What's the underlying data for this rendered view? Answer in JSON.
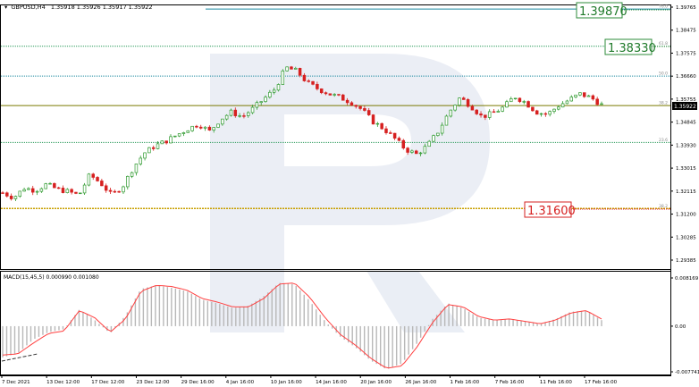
{
  "header": {
    "symbol": "GBPUSD,H4",
    "ohlc": "1.35918 1.35926 1.35917 1.35922"
  },
  "macd_panel": {
    "label": "MACD(15,45,5) 0.000990 0.001080",
    "price_labels": [
      "0.008169",
      "0.00",
      "-0.007741"
    ]
  },
  "price_scale": {
    "labels": [
      "1.39765",
      "1.38475",
      "1.37575",
      "1.36660",
      "1.35755",
      "1.34845",
      "1.33930",
      "1.33015",
      "1.32115",
      "1.31200",
      "1.30285",
      "1.29385"
    ],
    "current_price": "1.35922"
  },
  "time_scale": {
    "labels": [
      "7 Dec 2021",
      "13 Dec 12:00",
      "17 Dec 12:00",
      "23 Dec 12:00",
      "29 Dec 16:00",
      "4 Jan 16:00",
      "10 Jan 16:00",
      "14 Jan 16:00",
      "20 Jan 16:00",
      "26 Jan 16:00",
      "1 Feb 16:00",
      "7 Feb 16:00",
      "11 Feb 16:00",
      "17 Feb 16:00"
    ]
  },
  "fibonacci": {
    "levels": [
      {
        "ratio": "76.0",
        "price": 1.3987,
        "color": "#1e8aa0"
      },
      {
        "ratio": "61.8",
        "price": 1.3833,
        "color": "#2a9a5a"
      },
      {
        "ratio": "50.0",
        "price": 1.3709,
        "color": "#1e8aa0"
      },
      {
        "ratio": "38.2",
        "price": 1.3587,
        "color": "#7a7a00"
      },
      {
        "ratio": "23.6",
        "price": 1.3434,
        "color": "#2a9a5a"
      },
      {
        "ratio": "38.2",
        "price": 1.316,
        "color": "#c8a000"
      }
    ]
  },
  "annotations": [
    {
      "text": "1.39870",
      "style": "green"
    },
    {
      "text": "1.38330",
      "style": "green"
    },
    {
      "text": "1.31600",
      "style": "red"
    }
  ],
  "colors": {
    "bull": "#2f9a2f",
    "bear": "#d62020",
    "macd_signal": "#ff4040",
    "histogram": "#b8b8b8",
    "watermark": "#dde3ef"
  },
  "chart_data": [
    {
      "type": "candlestick",
      "title": "GBPUSD,H4",
      "x": [
        "7 Dec 2021",
        "13 Dec 12:00",
        "17 Dec 12:00",
        "23 Dec 12:00",
        "29 Dec 16:00",
        "4 Jan 16:00",
        "10 Jan 16:00",
        "14 Jan 16:00",
        "20 Jan 16:00",
        "26 Jan 16:00",
        "1 Feb 16:00",
        "7 Feb 16:00",
        "11 Feb 16:00",
        "17 Feb 16:00"
      ],
      "path": [
        1.3225,
        1.3205,
        1.3245,
        1.3235,
        1.326,
        1.324,
        1.323,
        1.3215,
        1.33,
        1.3265,
        1.3215,
        1.325,
        1.333,
        1.339,
        1.342,
        1.344,
        1.3465,
        1.349,
        1.351,
        1.348,
        1.353,
        1.356,
        1.354,
        1.3575,
        1.3615,
        1.3655,
        1.3745,
        1.373,
        1.368,
        1.3655,
        1.3635,
        1.362,
        1.36,
        1.357,
        1.352,
        1.349,
        1.345,
        1.3405,
        1.3385,
        1.342,
        1.348,
        1.356,
        1.362,
        1.3585,
        1.354,
        1.3555,
        1.358,
        1.3625,
        1.36,
        1.356,
        1.355,
        1.3585,
        1.361,
        1.3635,
        1.362,
        1.359
      ],
      "ylim": [
        1.292,
        1.3995
      ]
    },
    {
      "type": "bar",
      "title": "MACD(15,45,5)",
      "values_macd": [
        -0.0052,
        -0.0045,
        -0.0022,
        -0.001,
        -0.0005,
        0.0028,
        0.001,
        -0.0012,
        0.0018,
        0.0062,
        0.0068,
        0.0064,
        0.0058,
        0.0044,
        0.0038,
        0.003,
        0.0034,
        0.005,
        0.0072,
        0.007,
        0.0042,
        0.0008,
        -0.0018,
        -0.0036,
        -0.0058,
        -0.0072,
        -0.0062,
        -0.0028,
        0.0012,
        0.0038,
        0.003,
        0.0014,
        0.001,
        0.0012,
        0.0008,
        0.0004,
        0.0012,
        0.0024,
        0.0026,
        0.001
      ],
      "values_signal": [
        -0.0048,
        -0.0046,
        -0.0028,
        -0.0012,
        -0.0008,
        0.0026,
        0.0014,
        -0.001,
        0.0012,
        0.0058,
        0.0068,
        0.0066,
        0.006,
        0.0046,
        0.004,
        0.0032,
        0.0032,
        0.0046,
        0.007,
        0.0072,
        0.0048,
        0.0014,
        -0.0014,
        -0.0032,
        -0.0054,
        -0.007,
        -0.0066,
        -0.0034,
        0.0006,
        0.0036,
        0.0032,
        0.0016,
        0.001,
        0.0012,
        0.0008,
        0.0004,
        0.001,
        0.0022,
        0.0026,
        0.0012
      ],
      "ylim": [
        -0.007741,
        0.008169
      ]
    }
  ]
}
